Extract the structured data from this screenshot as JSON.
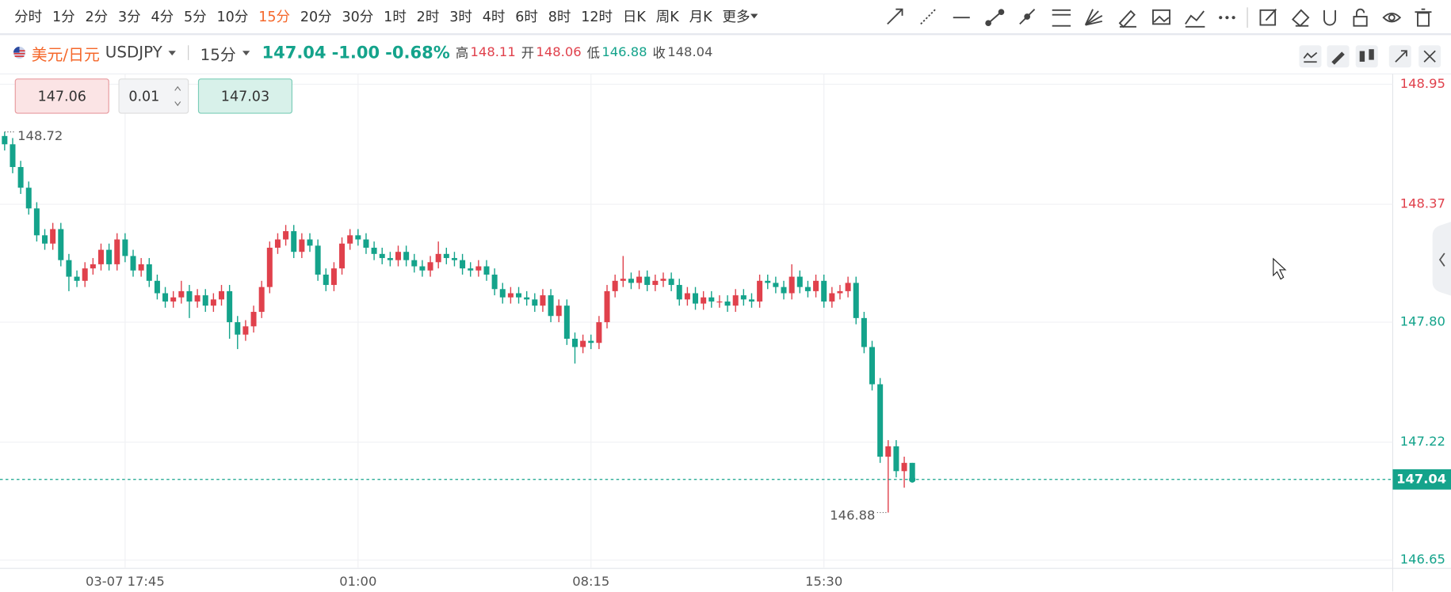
{
  "toolbar": {
    "periods": [
      "分时",
      "1分",
      "2分",
      "3分",
      "4分",
      "5分",
      "10分",
      "15分",
      "20分",
      "30分",
      "1时",
      "2时",
      "3时",
      "4时",
      "6时",
      "8时",
      "12时",
      "日K",
      "周K",
      "月K"
    ],
    "more": "更多"
  },
  "header": {
    "name": "美元/日元",
    "symbol": "USDJPY",
    "period": "15分",
    "change": "-1.00",
    "change_pct": "-0.68%",
    "high_label": "高",
    "high": 148.11,
    "open_label": "开",
    "open": 148.06,
    "low_label": "低",
    "low": 146.88,
    "prev_close_label": "收",
    "prev_close": 148.04
  },
  "order": {
    "sell": "147.06",
    "step": "0.01",
    "buy": "147.03"
  },
  "chart_data": {
    "type": "candlestick",
    "up_color": "#e0414c",
    "down_color": "#14a38b",
    "grid": true,
    "categories": [
      null,
      null,
      null,
      null,
      null,
      null,
      null,
      null,
      null,
      null,
      null,
      null,
      null,
      null,
      null,
      "03-07 17:45",
      null,
      null,
      null,
      null,
      null,
      null,
      null,
      null,
      null,
      null,
      null,
      null,
      null,
      null,
      null,
      null,
      null,
      null,
      null,
      null,
      null,
      null,
      null,
      null,
      null,
      null,
      null,
      null,
      "01:00",
      null,
      null,
      null,
      null,
      null,
      null,
      null,
      null,
      null,
      null,
      null,
      null,
      null,
      null,
      null,
      null,
      null,
      null,
      null,
      null,
      null,
      null,
      null,
      null,
      null,
      null,
      null,
      null,
      "08:15",
      null,
      null,
      null,
      null,
      null,
      null,
      null,
      null,
      null,
      null,
      null,
      null,
      null,
      null,
      null,
      null,
      null,
      null,
      null,
      null,
      null,
      null,
      null,
      null,
      null,
      null,
      null,
      null,
      "15:30",
      null,
      null,
      null,
      null,
      null,
      null,
      null,
      null,
      null,
      null,
      null
    ],
    "open": [
      148.7,
      148.66,
      148.55,
      148.45,
      148.35,
      148.22,
      148.18,
      148.25,
      148.1,
      148.02,
      148.0,
      148.06,
      148.08,
      148.15,
      148.08,
      148.2,
      148.12,
      148.05,
      148.08,
      148.0,
      147.94,
      147.9,
      147.92,
      147.95,
      147.9,
      147.93,
      147.88,
      147.91,
      147.95,
      147.8,
      147.74,
      147.78,
      147.85,
      147.97,
      148.16,
      148.2,
      148.24,
      148.14,
      148.2,
      148.17,
      148.03,
      147.98,
      148.06,
      148.18,
      148.22,
      148.2,
      148.16,
      148.13,
      148.11,
      148.1,
      148.14,
      148.1,
      148.07,
      148.05,
      148.09,
      148.13,
      148.11,
      148.1,
      148.06,
      148.05,
      148.07,
      148.03,
      147.96,
      147.92,
      147.94,
      147.92,
      147.91,
      147.88,
      147.93,
      147.83,
      147.88,
      147.72,
      147.68,
      147.71,
      147.7,
      147.8,
      147.95,
      148.0,
      148.01,
      147.99,
      148.02,
      147.98,
      148.0,
      148.01,
      147.98,
      147.91,
      147.94,
      147.89,
      147.92,
      147.9,
      147.9,
      147.88,
      147.93,
      147.91,
      147.9,
      148.0,
      147.99,
      147.97,
      147.94,
      148.02,
      147.97,
      147.95,
      148.0,
      147.9,
      147.94,
      147.95,
      147.99,
      147.82,
      147.68,
      147.5,
      147.15,
      147.2,
      147.08,
      147.12
    ],
    "high": [
      148.72,
      148.69,
      148.58,
      148.48,
      148.38,
      148.25,
      148.28,
      148.28,
      148.13,
      148.05,
      148.09,
      148.11,
      148.18,
      148.18,
      148.23,
      148.23,
      148.15,
      148.11,
      148.11,
      148.03,
      147.97,
      147.95,
      148.0,
      147.98,
      147.96,
      147.96,
      147.94,
      147.98,
      147.98,
      147.83,
      147.81,
      147.88,
      148.0,
      148.19,
      148.23,
      148.27,
      148.27,
      148.23,
      148.23,
      148.2,
      148.06,
      148.09,
      148.21,
      148.25,
      148.25,
      148.23,
      148.19,
      148.16,
      148.14,
      148.17,
      148.17,
      148.13,
      148.1,
      148.12,
      148.19,
      148.16,
      148.14,
      148.13,
      148.09,
      148.1,
      148.1,
      148.06,
      147.99,
      147.97,
      147.97,
      147.95,
      147.94,
      147.96,
      147.96,
      147.91,
      147.91,
      147.75,
      147.74,
      147.74,
      147.83,
      147.98,
      148.03,
      148.12,
      148.04,
      148.05,
      148.05,
      148.03,
      148.04,
      148.04,
      148.01,
      147.97,
      147.97,
      147.95,
      147.95,
      147.93,
      147.93,
      147.96,
      147.96,
      147.94,
      148.03,
      148.03,
      148.02,
      148.0,
      148.08,
      148.05,
      148.0,
      148.03,
      148.03,
      147.97,
      147.98,
      148.02,
      148.02,
      147.85,
      147.71,
      147.53,
      147.23,
      147.23,
      147.15,
      147.12
    ],
    "low": [
      148.63,
      148.52,
      148.42,
      148.32,
      148.19,
      148.15,
      148.15,
      148.07,
      147.95,
      147.97,
      147.97,
      148.03,
      148.05,
      148.05,
      148.05,
      148.09,
      148.02,
      148.02,
      147.97,
      147.91,
      147.87,
      147.87,
      147.89,
      147.82,
      147.87,
      147.85,
      147.85,
      147.88,
      147.72,
      147.67,
      147.71,
      147.75,
      147.82,
      147.94,
      148.13,
      148.17,
      148.11,
      148.11,
      148.14,
      148.0,
      147.95,
      147.95,
      148.03,
      148.15,
      148.17,
      148.13,
      148.1,
      148.08,
      148.07,
      148.07,
      148.07,
      148.04,
      148.02,
      148.02,
      148.06,
      148.08,
      148.07,
      148.03,
      148.02,
      148.02,
      148.0,
      147.93,
      147.89,
      147.89,
      147.89,
      147.88,
      147.85,
      147.85,
      147.8,
      147.8,
      147.69,
      147.6,
      147.65,
      147.67,
      147.67,
      147.77,
      147.92,
      147.97,
      147.96,
      147.96,
      147.95,
      147.95,
      147.97,
      147.95,
      147.88,
      147.88,
      147.86,
      147.86,
      147.87,
      147.87,
      147.85,
      147.85,
      147.88,
      147.87,
      147.87,
      147.96,
      147.94,
      147.91,
      147.91,
      147.94,
      147.92,
      147.92,
      147.87,
      147.87,
      147.91,
      147.92,
      147.79,
      147.65,
      147.47,
      147.12,
      146.88,
      147.05,
      147.0,
      147.03
    ],
    "close": [
      148.66,
      148.55,
      148.45,
      148.35,
      148.22,
      148.18,
      148.25,
      148.1,
      148.02,
      148.0,
      148.06,
      148.08,
      148.15,
      148.08,
      148.2,
      148.12,
      148.05,
      148.08,
      148.0,
      147.94,
      147.9,
      147.92,
      147.95,
      147.9,
      147.93,
      147.88,
      147.91,
      147.95,
      147.8,
      147.74,
      147.78,
      147.85,
      147.97,
      148.16,
      148.2,
      148.24,
      148.14,
      148.2,
      148.17,
      148.03,
      147.98,
      148.06,
      148.18,
      148.22,
      148.2,
      148.16,
      148.13,
      148.11,
      148.1,
      148.14,
      148.1,
      148.07,
      148.05,
      148.09,
      148.13,
      148.11,
      148.1,
      148.06,
      148.05,
      148.07,
      148.03,
      147.96,
      147.92,
      147.94,
      147.92,
      147.91,
      147.88,
      147.93,
      147.83,
      147.88,
      147.72,
      147.68,
      147.71,
      147.7,
      147.8,
      147.95,
      148.0,
      148.01,
      147.99,
      148.02,
      147.98,
      148.0,
      148.01,
      147.98,
      147.91,
      147.94,
      147.89,
      147.92,
      147.9,
      147.9,
      147.88,
      147.93,
      147.91,
      147.9,
      148.0,
      147.99,
      147.97,
      147.94,
      148.02,
      147.97,
      147.95,
      148.0,
      147.9,
      147.94,
      147.95,
      147.99,
      147.82,
      147.68,
      147.5,
      147.15,
      147.2,
      147.08,
      147.12,
      147.04
    ],
    "ylim": [
      146.61,
      149.0
    ],
    "yticks": [
      148.95,
      148.37,
      {
        "value": 147.8,
        "label": "147.80"
      },
      147.22,
      146.65
    ]
  }
}
